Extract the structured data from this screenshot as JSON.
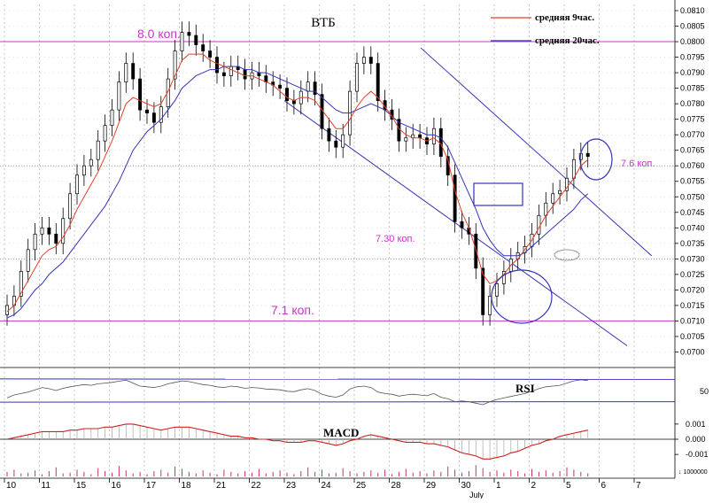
{
  "chart_data": {
    "type": "candlestick",
    "title": "ВТБ",
    "legend": {
      "placement": "top-right",
      "entries": [
        {
          "label": "средняя 9час.",
          "color": "#e0402a"
        },
        {
          "label": "средняя 20час.",
          "color": "#3434b8"
        }
      ]
    },
    "price_axis": {
      "ylim": [
        0.0695,
        0.0812
      ],
      "ticks": [
        "0.0700",
        "0.0705",
        "0.0710",
        "0.0715",
        "0.0720",
        "0.0725",
        "0.0730",
        "0.0735",
        "0.0740",
        "0.0745",
        "0.0750",
        "0.0755",
        "0.0760",
        "0.0765",
        "0.0770",
        "0.0775",
        "0.0780",
        "0.0785",
        "0.0790",
        "0.0795",
        "0.0800",
        "0.0805",
        "0.0810"
      ],
      "tick_values": [
        0.07,
        0.0705,
        0.071,
        0.0715,
        0.072,
        0.0725,
        0.073,
        0.0735,
        0.074,
        0.0745,
        0.075,
        0.0755,
        0.076,
        0.0765,
        0.077,
        0.0775,
        0.078,
        0.0785,
        0.079,
        0.0795,
        0.08,
        0.0805,
        0.081
      ]
    },
    "x_axis": {
      "labels": [
        "10",
        "11",
        "15",
        "16",
        "17",
        "18",
        "21",
        "22",
        "23",
        "24",
        "25",
        "28",
        "29",
        "30",
        "1",
        "2",
        "5",
        "6",
        "7"
      ],
      "month_label": "July"
    },
    "levels": [
      {
        "label": "8.0 коп.",
        "value": 0.08,
        "color": "#cc33cc"
      },
      {
        "label": "7.6 коп.",
        "value": 0.076,
        "color": "#cc33cc"
      },
      {
        "label": "7.30 коп.",
        "value": 0.073,
        "color": "#cc33cc"
      },
      {
        "label": "7.1 коп.",
        "value": 0.071,
        "color": "#cc33cc"
      }
    ],
    "channel": {
      "color": "#3434b8",
      "upper": [
        {
          "x": 11.9,
          "y": 0.0798
        },
        {
          "x": 18.5,
          "y": 0.0731
        }
      ],
      "lower": [
        {
          "x": 8.0,
          "y": 0.0781
        },
        {
          "x": 17.8,
          "y": 0.0702
        }
      ]
    },
    "candles_x": [
      0,
      0.2,
      0.4,
      0.6,
      0.8,
      1,
      1.2,
      1.4,
      1.6,
      1.8,
      2,
      2.2,
      2.4,
      2.6,
      2.8,
      3,
      3.2,
      3.4,
      3.6,
      3.8,
      4,
      4.2,
      4.4,
      4.6,
      4.8,
      5,
      5.2,
      5.4,
      5.6,
      5.8,
      6,
      6.2,
      6.4,
      6.6,
      6.8,
      7,
      7.2,
      7.4,
      7.6,
      7.8,
      8,
      8.2,
      8.4,
      8.6,
      8.8,
      9,
      9.2,
      9.4,
      9.6,
      9.8,
      10,
      10.2,
      10.4,
      10.6,
      10.8,
      11,
      11.2,
      11.4,
      11.6,
      11.8,
      12,
      12.2,
      12.4,
      12.6,
      12.8,
      13,
      13.2,
      13.4,
      13.6,
      13.8,
      14,
      14.2,
      14.4,
      14.6,
      14.8,
      15,
      15.2,
      15.4,
      15.6,
      15.8,
      16,
      16.2,
      16.4,
      16.6,
      16.8
    ],
    "candles_close": [
      0.0715,
      0.0718,
      0.0726,
      0.0733,
      0.0738,
      0.074,
      0.0738,
      0.0735,
      0.0743,
      0.0751,
      0.0757,
      0.076,
      0.0762,
      0.0768,
      0.0773,
      0.0778,
      0.0787,
      0.0793,
      0.0788,
      0.0778,
      0.0777,
      0.0774,
      0.0779,
      0.0788,
      0.0797,
      0.0803,
      0.0802,
      0.0799,
      0.0797,
      0.0795,
      0.079,
      0.0789,
      0.0792,
      0.0791,
      0.0788,
      0.079,
      0.0789,
      0.0787,
      0.0786,
      0.0785,
      0.0781,
      0.078,
      0.0784,
      0.0787,
      0.0783,
      0.0772,
      0.0768,
      0.0766,
      0.077,
      0.0784,
      0.0793,
      0.0795,
      0.0793,
      0.0781,
      0.0778,
      0.0775,
      0.0768,
      0.0769,
      0.077,
      0.0769,
      0.0767,
      0.0772,
      0.0763,
      0.0757,
      0.0742,
      0.074,
      0.0738,
      0.0727,
      0.0712,
      0.0718,
      0.0722,
      0.0726,
      0.073,
      0.0732,
      0.0734,
      0.0738,
      0.0744,
      0.0748,
      0.0751,
      0.0752,
      0.0756,
      0.0762,
      0.0764,
      0.0763
    ],
    "ma9_label": "средняя 9час.",
    "ma9_color": "#e0402a",
    "ma20_label": "средняя 20час.",
    "ma20_color": "#3434b8",
    "ma9": [
      0.0713,
      0.0715,
      0.0719,
      0.0723,
      0.0727,
      0.0731,
      0.0733,
      0.0734,
      0.0737,
      0.0741,
      0.0746,
      0.075,
      0.0754,
      0.0758,
      0.0763,
      0.0768,
      0.0774,
      0.078,
      0.0782,
      0.0781,
      0.078,
      0.0779,
      0.078,
      0.0784,
      0.0789,
      0.0794,
      0.0796,
      0.0796,
      0.0796,
      0.0794,
      0.0793,
      0.0792,
      0.0791,
      0.079,
      0.0789,
      0.0789,
      0.0788,
      0.0787,
      0.0786,
      0.0784,
      0.0782,
      0.0781,
      0.0782,
      0.0782,
      0.0781,
      0.0778,
      0.0775,
      0.0772,
      0.0772,
      0.0775,
      0.0779,
      0.0782,
      0.0784,
      0.0782,
      0.0779,
      0.0776,
      0.0772,
      0.077,
      0.0769,
      0.0769,
      0.0768,
      0.0769,
      0.0767,
      0.0762,
      0.0752,
      0.0745,
      0.074,
      0.0733,
      0.0725,
      0.0722,
      0.0723,
      0.0725,
      0.0728,
      0.073,
      0.0733,
      0.0736,
      0.074,
      0.0744,
      0.0747,
      0.075,
      0.0753,
      0.0756,
      0.076,
      0.0762
    ],
    "ma20": [
      0.0711,
      0.0712,
      0.0714,
      0.0717,
      0.072,
      0.0722,
      0.0725,
      0.0727,
      0.0729,
      0.0732,
      0.0735,
      0.0738,
      0.0741,
      0.0744,
      0.0747,
      0.0751,
      0.0755,
      0.076,
      0.0765,
      0.0768,
      0.0771,
      0.0773,
      0.0775,
      0.0778,
      0.0781,
      0.0785,
      0.0787,
      0.0789,
      0.079,
      0.0791,
      0.0791,
      0.0792,
      0.0792,
      0.0792,
      0.0791,
      0.0791,
      0.079,
      0.079,
      0.0789,
      0.0788,
      0.0787,
      0.0786,
      0.0785,
      0.0784,
      0.0784,
      0.0782,
      0.078,
      0.0778,
      0.0777,
      0.0777,
      0.0778,
      0.0779,
      0.078,
      0.0779,
      0.0778,
      0.0776,
      0.0774,
      0.0773,
      0.0772,
      0.0771,
      0.077,
      0.077,
      0.0769,
      0.0766,
      0.0761,
      0.0756,
      0.0751,
      0.0746,
      0.074,
      0.0736,
      0.0733,
      0.0731,
      0.0731,
      0.0731,
      0.0732,
      0.0734,
      0.0736,
      0.0738,
      0.074,
      0.0742,
      0.0744,
      0.0746,
      0.0749,
      0.0751
    ],
    "rsi": {
      "label": "RSI",
      "ylim": [
        0,
        100
      ],
      "ticks": [
        "50"
      ],
      "tick_values": [
        50
      ],
      "bands": [
        80,
        20
      ],
      "values": [
        30,
        38,
        42,
        46,
        52,
        58,
        55,
        50,
        56,
        60,
        63,
        66,
        64,
        68,
        70,
        72,
        75,
        78,
        70,
        62,
        60,
        58,
        62,
        68,
        72,
        76,
        74,
        70,
        66,
        64,
        60,
        58,
        62,
        60,
        56,
        58,
        57,
        54,
        53,
        52,
        48,
        47,
        52,
        55,
        50,
        40,
        35,
        32,
        38,
        54,
        60,
        62,
        58,
        46,
        42,
        40,
        35,
        38,
        40,
        38,
        36,
        42,
        32,
        28,
        20,
        22,
        20,
        16,
        12,
        20,
        26,
        30,
        34,
        38,
        42,
        48,
        55,
        60,
        62,
        64,
        70,
        76,
        79,
        77
      ]
    },
    "macd": {
      "label": "MACD",
      "ylim": [
        -0.0014,
        0.0014
      ],
      "ticks": [
        "0.001",
        "0.000",
        "-0.001"
      ],
      "tick_values": [
        0.001,
        0.0,
        -0.001
      ],
      "values": [
        0.0,
        0.0001,
        0.0002,
        0.0003,
        0.0004,
        0.0005,
        0.0005,
        0.0005,
        0.0005,
        0.0006,
        0.0006,
        0.0007,
        0.0007,
        0.0007,
        0.0008,
        0.0008,
        0.0009,
        0.001,
        0.001,
        0.0009,
        0.0008,
        0.0007,
        0.0006,
        0.0007,
        0.0008,
        0.0008,
        0.0008,
        0.0007,
        0.0006,
        0.0005,
        0.0004,
        0.0003,
        0.0002,
        0.0002,
        0.0001,
        0.0001,
        0.0,
        0.0,
        -0.0001,
        -0.0001,
        -0.0002,
        -0.0002,
        -0.0002,
        -0.0001,
        -0.0001,
        -0.0002,
        -0.0003,
        -0.0004,
        -0.0003,
        -0.0001,
        0.0,
        0.0002,
        0.0003,
        0.0002,
        0.0001,
        0.0,
        -0.0001,
        -0.0002,
        -0.0002,
        -0.0002,
        -0.0003,
        -0.0003,
        -0.0004,
        -0.0005,
        -0.0007,
        -0.0009,
        -0.001,
        -0.0011,
        -0.0013,
        -0.0013,
        -0.0012,
        -0.0011,
        -0.0009,
        -0.0008,
        -0.0006,
        -0.0004,
        -0.0003,
        -0.0001,
        0.0,
        0.0002,
        0.0003,
        0.0004,
        0.0005,
        0.0006
      ]
    },
    "volume": {
      "ticks": [
        "1000000"
      ],
      "tick_values": [
        1000000
      ],
      "ylim": [
        0,
        3000000
      ],
      "values": [
        600000,
        900000,
        400000,
        500000,
        800000,
        300000,
        700000,
        1200000,
        400000,
        500000,
        900000,
        600000,
        300000,
        1100000,
        700000,
        500000,
        1400000,
        800000,
        400000,
        600000,
        300000,
        700000,
        900000,
        500000,
        1300000,
        1000000,
        600000,
        400000,
        800000,
        500000,
        300000,
        900000,
        600000,
        400000,
        700000,
        500000,
        1000000,
        400000,
        600000,
        800000,
        500000,
        300000,
        700000,
        1200000,
        600000,
        900000,
        400000,
        500000,
        1100000,
        700000,
        400000,
        600000,
        800000,
        500000,
        900000,
        300000,
        600000,
        1000000,
        500000,
        700000,
        400000,
        800000,
        600000,
        1300000,
        900000,
        500000,
        700000,
        1500000,
        1100000,
        600000,
        800000,
        500000,
        900000,
        700000,
        400000,
        1000000,
        600000,
        800000,
        500000,
        700000,
        1200000,
        900000,
        600000,
        400000
      ]
    }
  }
}
